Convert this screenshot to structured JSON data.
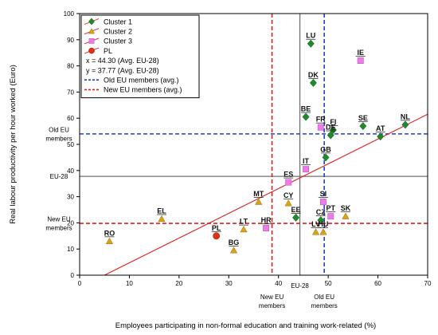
{
  "chart_data": {
    "type": "scatter",
    "xlabel": "Employees participating in non-formal education and training work-related (%)",
    "ylabel": "Real labour productivity per hour worked (Euro)",
    "xlim": [
      0,
      70
    ],
    "ylim": [
      0,
      100
    ],
    "x_ticks": [
      0,
      10,
      20,
      30,
      40,
      50,
      60,
      70
    ],
    "y_ticks": [
      0,
      10,
      20,
      30,
      40,
      50,
      60,
      70,
      80,
      90,
      100
    ],
    "grid": false,
    "legend_position": "top-left",
    "colors": {
      "cluster1": "#1f8a2a",
      "cluster2": "#d9a21b",
      "cluster3": "#ee7ce8",
      "pl": "#e03018",
      "regression": "#e02020",
      "avg_eu28": "#707070",
      "old_eu": "#1e3fd6",
      "new_eu": "#e02020"
    },
    "series": [
      {
        "name": "Cluster 1",
        "marker": "diamond",
        "color_key": "cluster1",
        "points": [
          {
            "label": "LU",
            "x": 46.5,
            "y": 88.5
          },
          {
            "label": "DK",
            "x": 47.0,
            "y": 73.5
          },
          {
            "label": "BE",
            "x": 45.5,
            "y": 60.5
          },
          {
            "label": "FI",
            "x": 51.0,
            "y": 55.5
          },
          {
            "label": "DE",
            "x": 50.5,
            "y": 53.5
          },
          {
            "label": "SE",
            "x": 57.0,
            "y": 57.0
          },
          {
            "label": "NL",
            "x": 65.5,
            "y": 57.5
          },
          {
            "label": "AT",
            "x": 60.5,
            "y": 53.0
          },
          {
            "label": "GB",
            "x": 49.5,
            "y": 45.0
          },
          {
            "label": "EE",
            "x": 43.5,
            "y": 22.0
          },
          {
            "label": "CZ",
            "x": 48.5,
            "y": 21.0
          }
        ]
      },
      {
        "name": "Cluster 2",
        "marker": "triangle",
        "color_key": "cluster2",
        "points": [
          {
            "label": "EL",
            "x": 16.5,
            "y": 21.5
          },
          {
            "label": "RO",
            "x": 6.0,
            "y": 13.0
          },
          {
            "label": "BG",
            "x": 31.0,
            "y": 9.5
          },
          {
            "label": "LT",
            "x": 33.0,
            "y": 17.5
          },
          {
            "label": "MT",
            "x": 36.0,
            "y": 28.0
          },
          {
            "label": "CY",
            "x": 42.0,
            "y": 27.5
          },
          {
            "label": "LV",
            "x": 47.5,
            "y": 16.5
          },
          {
            "label": "HU",
            "x": 49.0,
            "y": 16.5
          },
          {
            "label": "SK",
            "x": 53.5,
            "y": 22.5
          }
        ]
      },
      {
        "name": "Cluster 3",
        "marker": "square",
        "color_key": "cluster3",
        "points": [
          {
            "label": "IE",
            "x": 56.5,
            "y": 82.0
          },
          {
            "label": "FR",
            "x": 48.5,
            "y": 56.5
          },
          {
            "label": "IT",
            "x": 45.5,
            "y": 40.5
          },
          {
            "label": "ES",
            "x": 42.0,
            "y": 35.5
          },
          {
            "label": "SI",
            "x": 49.0,
            "y": 28.0
          },
          {
            "label": "PT",
            "x": 50.5,
            "y": 22.5
          },
          {
            "label": "HR",
            "x": 37.5,
            "y": 18.0
          }
        ]
      },
      {
        "name": "PL",
        "marker": "circle",
        "color_key": "pl",
        "points": [
          {
            "label": "PL",
            "x": 27.5,
            "y": 15.0
          }
        ]
      }
    ],
    "reference_lines": [
      {
        "orientation": "vertical",
        "value": 44.3,
        "style": "solid",
        "color_key": "avg_eu28",
        "legend": "x = 44.30 (Avg. EU-28)"
      },
      {
        "orientation": "horizontal",
        "value": 37.77,
        "style": "solid",
        "color_key": "avg_eu28",
        "legend": "y = 37.77 (Avg. EU-28)"
      },
      {
        "orientation": "vertical",
        "value": 49.2,
        "style": "dashed",
        "color_key": "old_eu",
        "legend": "Old EU members (avg.)"
      },
      {
        "orientation": "horizontal",
        "value": 54.0,
        "style": "dashed",
        "color_key": "old_eu",
        "legend": ""
      },
      {
        "orientation": "vertical",
        "value": 38.7,
        "style": "dashed",
        "color_key": "new_eu",
        "legend": "New EU members (avg.)"
      },
      {
        "orientation": "horizontal",
        "value": 19.8,
        "style": "dashed",
        "color_key": "new_eu",
        "legend": ""
      }
    ],
    "regression_line": {
      "x1": 5.0,
      "y1": 0.0,
      "x2": 70.0,
      "y2": 61.5
    },
    "y_reference_labels": [
      {
        "text": "Old EU\nmembers",
        "value": 54.0
      },
      {
        "text": "EU-28",
        "value": 37.77
      },
      {
        "text": "New EU\nmembers",
        "value": 19.8
      }
    ],
    "x_reference_labels": [
      {
        "text": "New EU\nmembers",
        "value": 38.7
      },
      {
        "text": "EU-28",
        "value": 44.3
      },
      {
        "text": "Old EU\nmembers",
        "value": 49.2
      }
    ],
    "legend_items": [
      {
        "text": "Cluster 1",
        "symbol": "diamond",
        "color_key": "cluster1"
      },
      {
        "text": "Cluster 2",
        "symbol": "triangle",
        "color_key": "cluster2"
      },
      {
        "text": "Cluster 3",
        "symbol": "square",
        "color_key": "cluster3"
      },
      {
        "text": "PL",
        "symbol": "circle",
        "color_key": "pl"
      },
      {
        "text": "x = 44.30 (Avg. EU-28)",
        "symbol": "none",
        "color_key": ""
      },
      {
        "text": "y = 37.77 (Avg. EU-28)",
        "symbol": "none",
        "color_key": ""
      },
      {
        "text": "Old EU members (avg.)",
        "symbol": "dashed",
        "color_key": "old_eu"
      },
      {
        "text": "New EU members (avg.)",
        "symbol": "dashed",
        "color_key": "new_eu"
      }
    ]
  }
}
